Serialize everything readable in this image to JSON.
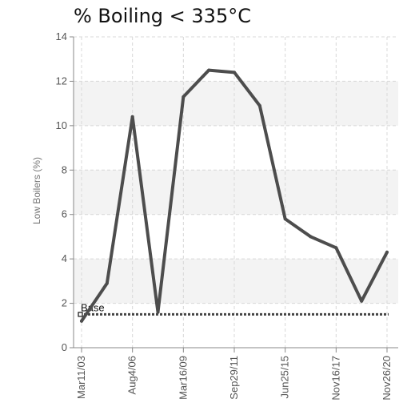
{
  "chart_data": {
    "type": "line",
    "title": "% Boiling < 335°C",
    "ylabel": "Low Boilers (%)",
    "ylim": [
      0,
      14
    ],
    "yticks": [
      0,
      2,
      4,
      6,
      8,
      10,
      12,
      14
    ],
    "x_tick_labels": [
      "Mar11/03",
      "Aug4/06",
      "Mar16/09",
      "Sep29/11",
      "Jun25/15",
      "Nov16/17",
      "Nov26/20"
    ],
    "series": [
      {
        "values": [
          1.2,
          2.9,
          10.4,
          1.6,
          11.3,
          12.5,
          12.4,
          10.9,
          5.8,
          5.0,
          4.5,
          2.1,
          4.3
        ],
        "color": "#4d4d4d"
      }
    ],
    "reference_line": {
      "label": "Base",
      "value": 1.5,
      "color": "#444444"
    },
    "grid": true,
    "band_color": "#f3f3f3"
  }
}
